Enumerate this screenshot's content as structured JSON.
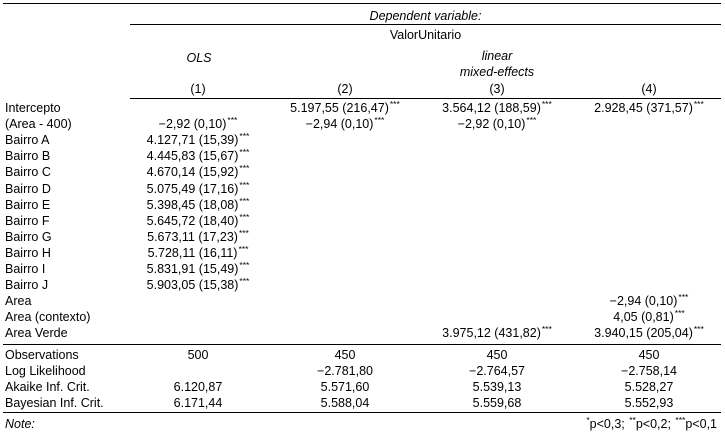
{
  "table": {
    "header_dependent": "Dependent variable:",
    "header_depvar": "ValorUnitario",
    "methods": {
      "ols": "OLS",
      "lme_line1": "linear",
      "lme_line2": "mixed-effects"
    },
    "model_numbers": [
      "(1)",
      "(2)",
      "(3)",
      "(4)"
    ],
    "rows": [
      {
        "label": "Intercepto",
        "vals": [
          "",
          "5.197,55 (216,47)",
          "3.564,12 (188,59)",
          "2.928,45 (371,57)"
        ],
        "stars": [
          "",
          "***",
          "***",
          "***"
        ]
      },
      {
        "label": "(Area - 400)",
        "vals": [
          "−2,92 (0,10)",
          "−2,94 (0,10)",
          "−2,92 (0,10)",
          ""
        ],
        "stars": [
          "***",
          "***",
          "***",
          ""
        ]
      },
      {
        "label": "Bairro A",
        "vals": [
          "4.127,71 (15,39)",
          "",
          "",
          ""
        ],
        "stars": [
          "***",
          "",
          "",
          ""
        ]
      },
      {
        "label": "Bairro B",
        "vals": [
          "4.445,83 (15,67)",
          "",
          "",
          ""
        ],
        "stars": [
          "***",
          "",
          "",
          ""
        ]
      },
      {
        "label": "Bairro C",
        "vals": [
          "4.670,14 (15,92)",
          "",
          "",
          ""
        ],
        "stars": [
          "***",
          "",
          "",
          ""
        ]
      },
      {
        "label": "Bairro D",
        "vals": [
          "5.075,49 (17,16)",
          "",
          "",
          ""
        ],
        "stars": [
          "***",
          "",
          "",
          ""
        ]
      },
      {
        "label": "Bairro E",
        "vals": [
          "5.398,45 (18,08)",
          "",
          "",
          ""
        ],
        "stars": [
          "***",
          "",
          "",
          ""
        ]
      },
      {
        "label": "Bairro F",
        "vals": [
          "5.645,72 (18,40)",
          "",
          "",
          ""
        ],
        "stars": [
          "***",
          "",
          "",
          ""
        ]
      },
      {
        "label": "Bairro G",
        "vals": [
          "5.673,11 (17,23)",
          "",
          "",
          ""
        ],
        "stars": [
          "***",
          "",
          "",
          ""
        ]
      },
      {
        "label": "Bairro H",
        "vals": [
          "5.728,11 (16,11)",
          "",
          "",
          ""
        ],
        "stars": [
          "***",
          "",
          "",
          ""
        ]
      },
      {
        "label": "Bairro I",
        "vals": [
          "5.831,91 (15,49)",
          "",
          "",
          ""
        ],
        "stars": [
          "***",
          "",
          "",
          ""
        ]
      },
      {
        "label": "Bairro J",
        "vals": [
          "5.903,05 (15,38)",
          "",
          "",
          ""
        ],
        "stars": [
          "***",
          "",
          "",
          ""
        ]
      },
      {
        "label": "Area",
        "vals": [
          "",
          "",
          "",
          "−2,94 (0,10)"
        ],
        "stars": [
          "",
          "",
          "",
          "***"
        ]
      },
      {
        "label": "Area (contexto)",
        "vals": [
          "",
          "",
          "",
          "4,05 (0,81)"
        ],
        "stars": [
          "",
          "",
          "",
          "***"
        ]
      },
      {
        "label": "Area Verde",
        "vals": [
          "",
          "",
          "3.975,12 (431,82)",
          "3.940,15 (205,04)"
        ],
        "stars": [
          "",
          "",
          "***",
          "***"
        ]
      }
    ],
    "stats": [
      {
        "label": "Observations",
        "vals": [
          "500",
          "450",
          "450",
          "450"
        ]
      },
      {
        "label": "Log Likelihood",
        "vals": [
          "",
          "−2.781,80",
          "−2.764,57",
          "−2.758,14"
        ]
      },
      {
        "label": "Akaike Inf. Crit.",
        "vals": [
          "6.120,87",
          "5.571,60",
          "5.539,13",
          "5.528,27"
        ]
      },
      {
        "label": "Bayesian Inf. Crit.",
        "vals": [
          "6.171,44",
          "5.588,04",
          "5.559,68",
          "5.552,93"
        ]
      }
    ],
    "note_label": "Note:",
    "note_parts": [
      {
        "sup": "*",
        "text": "p<0,3; "
      },
      {
        "sup": "**",
        "text": "p<0,2; "
      },
      {
        "sup": "***",
        "text": "p<0,1"
      }
    ]
  }
}
